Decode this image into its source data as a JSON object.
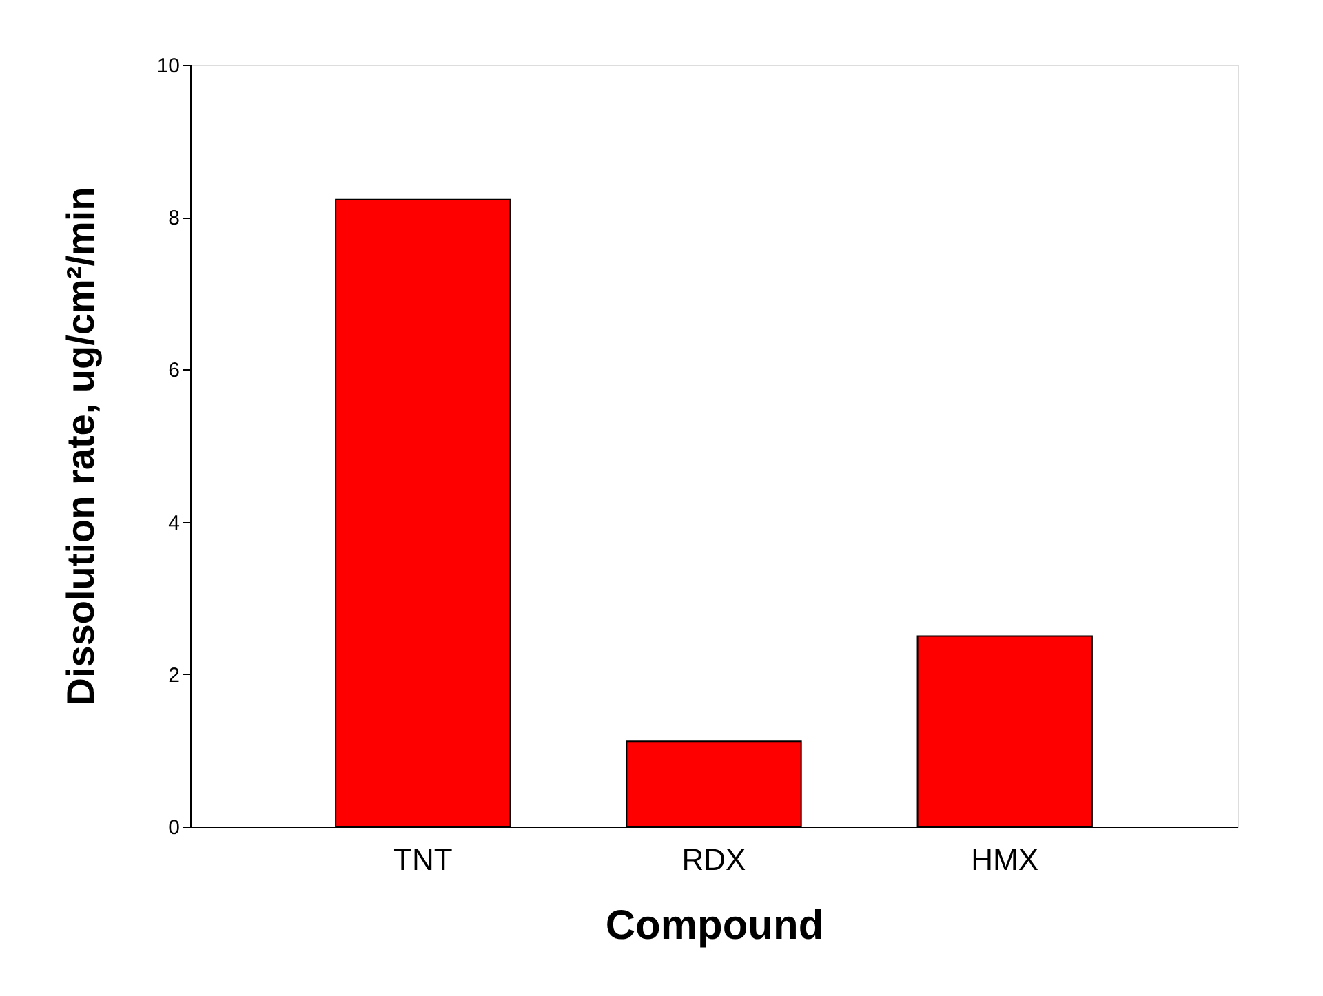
{
  "chart_data": {
    "type": "bar",
    "categories": [
      "TNT",
      "RDX",
      "HMX"
    ],
    "values": [
      8.23,
      1.12,
      2.5
    ],
    "color": "#ff0000",
    "xlabel": "Compound",
    "ylabel": "Dissolution rate,  ug/cm²/min",
    "ylim": [
      0,
      10
    ],
    "yticks": [
      0,
      2,
      4,
      6,
      8,
      10
    ],
    "grid": false
  }
}
